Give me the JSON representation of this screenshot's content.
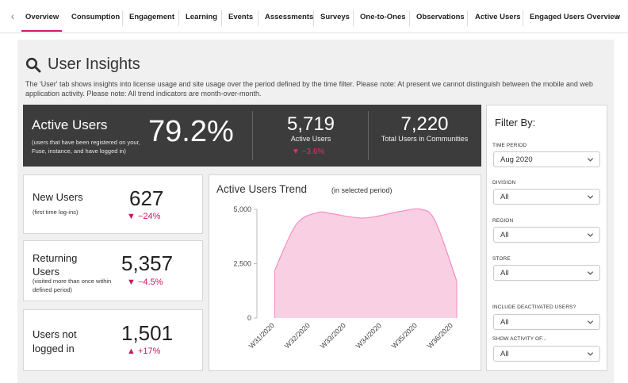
{
  "tabs": [
    {
      "label": "Overview",
      "active": true
    },
    {
      "label": "Consumption"
    },
    {
      "label": "Engagement"
    },
    {
      "label": "Learning"
    },
    {
      "label": "Events"
    },
    {
      "label": "Assessments"
    },
    {
      "label": "Surveys"
    },
    {
      "label": "One-to-Ones"
    },
    {
      "label": "Observations"
    },
    {
      "label": "Active Users"
    },
    {
      "label": "Engaged Users Overview"
    }
  ],
  "tab_scroll_left_icon": "chevron-left-icon",
  "tab_scroll_right_icon": "chevron-right-icon",
  "page": {
    "title": "User Insights",
    "title_icon": "search-icon",
    "description": "The 'User' tab shows insights into license usage and site usage over the period defined by the time filter. Please note: At present we cannot distinguish between the mobile and web application activity. Please note: All trend indicators are month-over-month."
  },
  "banner": {
    "title": "Active Users",
    "subtitle": "(users that have been registered on your, Fuse, instance, and have logged in)",
    "percentage": "79.2%",
    "active_count": "5,719",
    "active_label": "Active Users",
    "active_change": "▼ −3.6%",
    "total_count": "7,220",
    "total_label": "Total Users in Communities"
  },
  "cards": {
    "new_users": {
      "title": "New Users",
      "subtitle": "(first time log-ins)",
      "value": "627",
      "change": "▼ −24%"
    },
    "returning_users": {
      "title_line1": "Returning",
      "title_line2": "Users",
      "subtitle": "(visited more than once within defined period)",
      "value": "5,357",
      "change": "▼ −4.5%"
    },
    "not_logged": {
      "title_line1": "Users not",
      "title_line2": "logged in",
      "value": "1,501",
      "change": "▲ +17%"
    }
  },
  "chart_data": {
    "type": "area",
    "title": "Active Users Trend",
    "subtitle": "(in selected period)",
    "categories": [
      "W31/2020",
      "W32/2020",
      "W33/2020",
      "W34/2020",
      "W35/2020",
      "W36/2020"
    ],
    "x": [
      31.0,
      31.6,
      32.2,
      32.6,
      33.5,
      34.5,
      35.1,
      35.5,
      36.1
    ],
    "values": [
      2200,
      4300,
      4850,
      4800,
      4600,
      4900,
      5000,
      4450,
      1700
    ],
    "yticks": [
      "5,000",
      "2,500",
      "0"
    ],
    "ylim": [
      0,
      5000
    ],
    "fill_color": "#f9cfe3",
    "line_color": "#f48ec0",
    "grid": true
  },
  "filter": {
    "title": "Filter By:",
    "fields": [
      {
        "label": "TIME PERIOD",
        "value": "Aug 2020"
      },
      {
        "label": "DIVISION",
        "value": "All"
      },
      {
        "label": "REGION",
        "value": "All"
      },
      {
        "label": "STORE",
        "value": "All"
      },
      {
        "label": "INCLUDE DEACTIVATED USERS?",
        "value": "All"
      },
      {
        "label": "SHOW ACTIVITY OF...",
        "value": "All"
      }
    ],
    "chevron_icon": "chevron-down-icon"
  },
  "colors": {
    "accent": "#d6186b",
    "negative": "#c8185d",
    "banner_bg": "#3c3c3c"
  }
}
